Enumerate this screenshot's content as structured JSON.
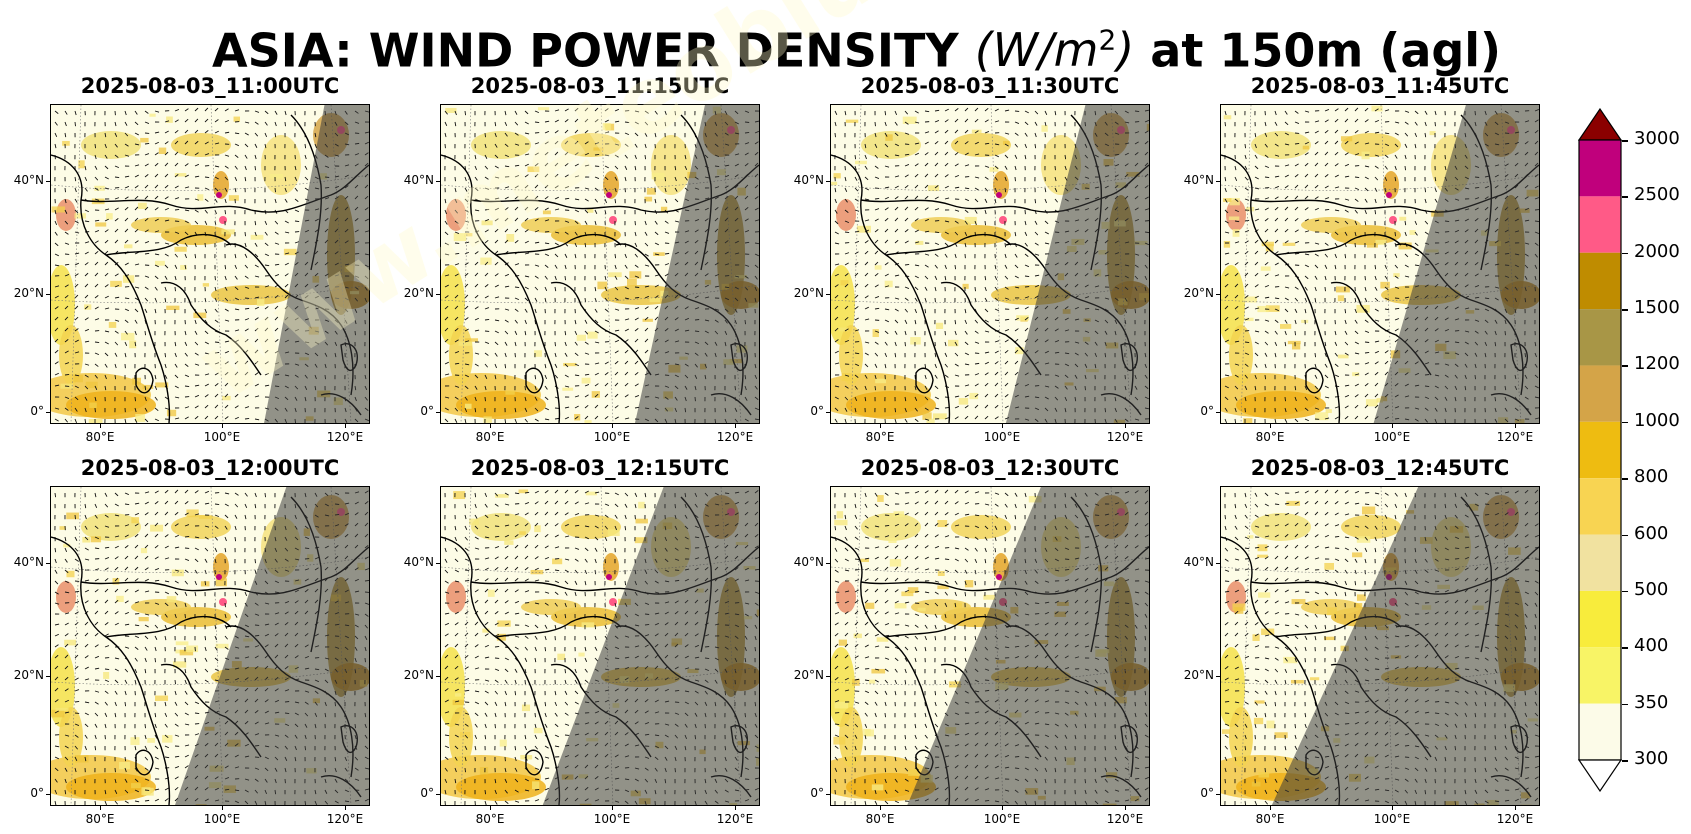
{
  "title": {
    "prefix": "ASIA: WIND POWER DENSITY ",
    "unit_open": "(W/m",
    "unit_exp": "2",
    "unit_close": ")",
    "suffix": " at 150m (agl)"
  },
  "watermark": "www.meteoblue.com",
  "axes": {
    "y_labels": [
      "40°N",
      "20°N",
      "0°"
    ],
    "x_labels": [
      "80°E",
      "100°E",
      "120°E"
    ]
  },
  "panels": [
    {
      "label": "2025-08-03_11:00UTC",
      "terminator_top": 0.86,
      "terminator_bottom": 0.67
    },
    {
      "label": "2025-08-03_11:15UTC",
      "terminator_top": 0.83,
      "terminator_bottom": 0.61
    },
    {
      "label": "2025-08-03_11:30UTC",
      "terminator_top": 0.8,
      "terminator_bottom": 0.55
    },
    {
      "label": "2025-08-03_11:45UTC",
      "terminator_top": 0.77,
      "terminator_bottom": 0.48
    },
    {
      "label": "2025-08-03_12:00UTC",
      "terminator_top": 0.74,
      "terminator_bottom": 0.39
    },
    {
      "label": "2025-08-03_12:15UTC",
      "terminator_top": 0.7,
      "terminator_bottom": 0.32
    },
    {
      "label": "2025-08-03_12:30UTC",
      "terminator_top": 0.66,
      "terminator_bottom": 0.24
    },
    {
      "label": "2025-08-03_12:45UTC",
      "terminator_top": 0.62,
      "terminator_bottom": 0.16
    }
  ],
  "colorbar": {
    "labels": [
      "3000",
      "2500",
      "2000",
      "1500",
      "1200",
      "1000",
      "800",
      "600",
      "500",
      "400",
      "350",
      "300"
    ],
    "colors": [
      "#c0007c",
      "#ff5a87",
      "#bf8c00",
      "#a89646",
      "#d4a448",
      "#eebc11",
      "#f8d452",
      "#f1e2a0",
      "#f8ec3c",
      "#f8f466",
      "#fcfbe8"
    ],
    "over_color": "#8b0000",
    "under_color": "#ffffff"
  }
}
